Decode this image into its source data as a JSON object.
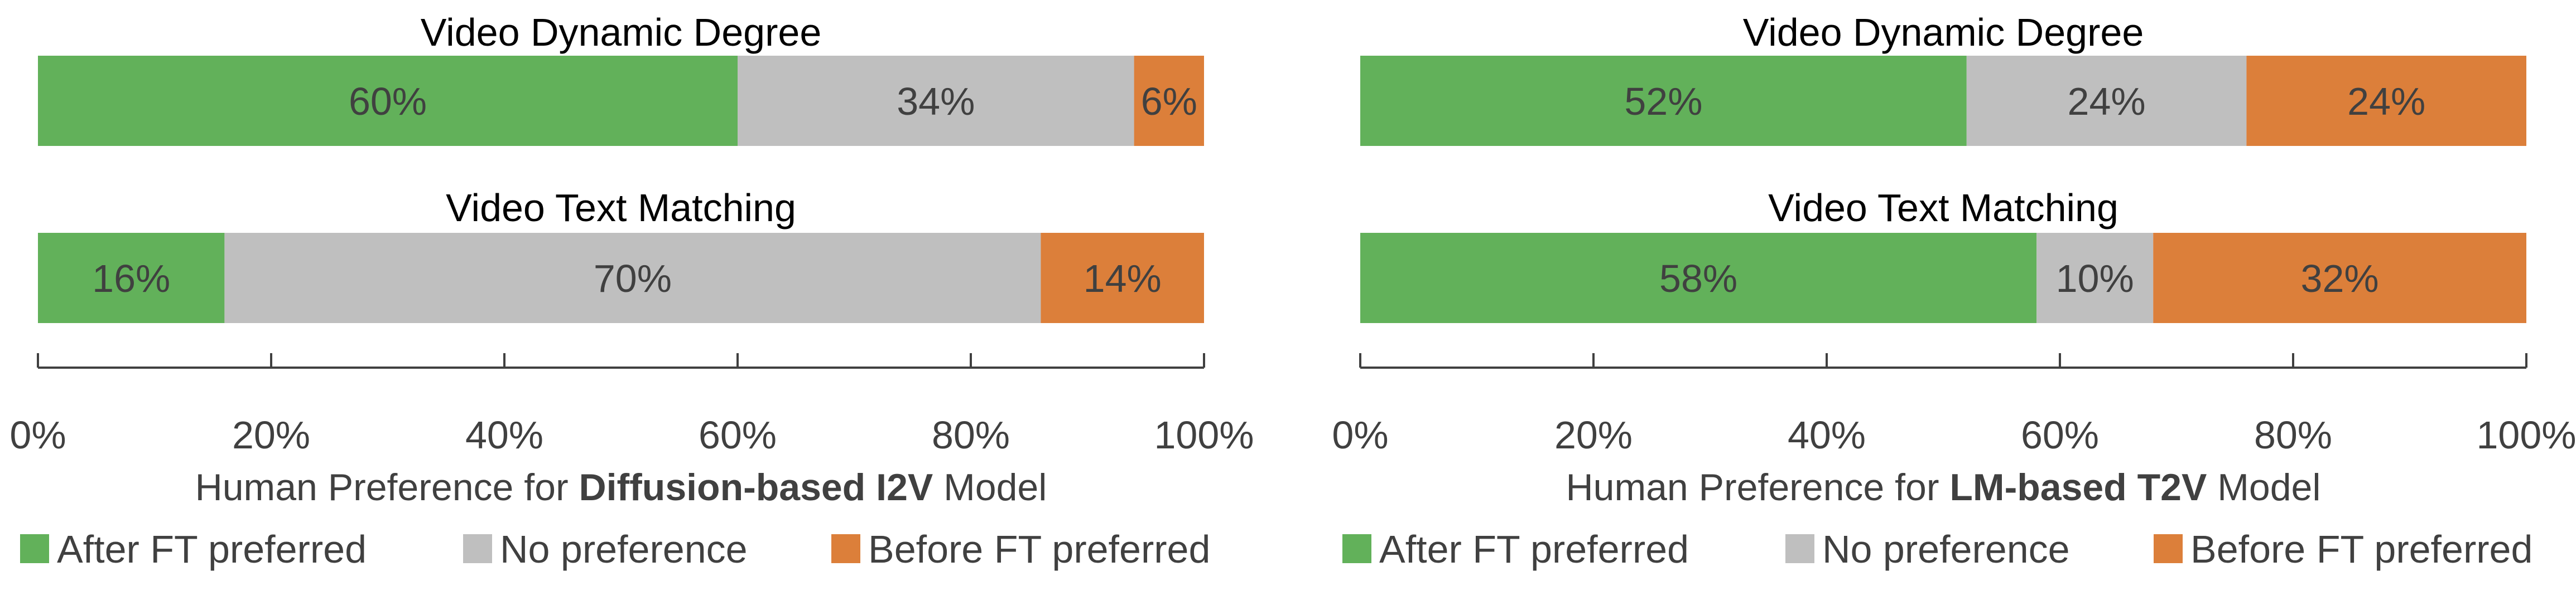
{
  "chart_data": [
    {
      "type": "bar",
      "orientation": "horizontal",
      "stacked": true,
      "categories": [
        "Video Dynamic Degree",
        "Video Text Matching"
      ],
      "series": [
        {
          "name": "After FT preferred",
          "values": [
            60,
            16
          ],
          "color": "#62B15A"
        },
        {
          "name": "No preference",
          "values": [
            34,
            70
          ],
          "color": "#BFBFBF"
        },
        {
          "name": "Before FT preferred",
          "values": [
            6,
            14
          ],
          "color": "#DC7F3A"
        }
      ],
      "data_labels": [
        [
          "60%",
          "34%",
          "6%"
        ],
        [
          "16%",
          "70%",
          "14%"
        ]
      ],
      "xlim": [
        0,
        100
      ],
      "x_ticks": [
        "0%",
        "20%",
        "40%",
        "60%",
        "80%",
        "100%"
      ],
      "xlabel": {
        "prefix": "Human Preference for ",
        "bold": "Diffusion-based I2V",
        "suffix": " Model"
      },
      "legend_position": "bottom",
      "grid": false
    },
    {
      "type": "bar",
      "orientation": "horizontal",
      "stacked": true,
      "categories": [
        "Video Dynamic Degree",
        "Video Text Matching"
      ],
      "series": [
        {
          "name": "After FT preferred",
          "values": [
            52,
            58
          ],
          "color": "#62B15A"
        },
        {
          "name": "No preference",
          "values": [
            24,
            10
          ],
          "color": "#BFBFBF"
        },
        {
          "name": "Before FT preferred",
          "values": [
            24,
            32
          ],
          "color": "#DC7F3A"
        }
      ],
      "data_labels": [
        [
          "52%",
          "24%",
          "24%"
        ],
        [
          "58%",
          "10%",
          "32%"
        ]
      ],
      "xlim": [
        0,
        100
      ],
      "x_ticks": [
        "0%",
        "20%",
        "40%",
        "60%",
        "80%",
        "100%"
      ],
      "xlabel": {
        "prefix": "Human Preference for ",
        "bold": "LM-based T2V",
        "suffix": " Model"
      },
      "legend_position": "bottom",
      "grid": false
    }
  ]
}
